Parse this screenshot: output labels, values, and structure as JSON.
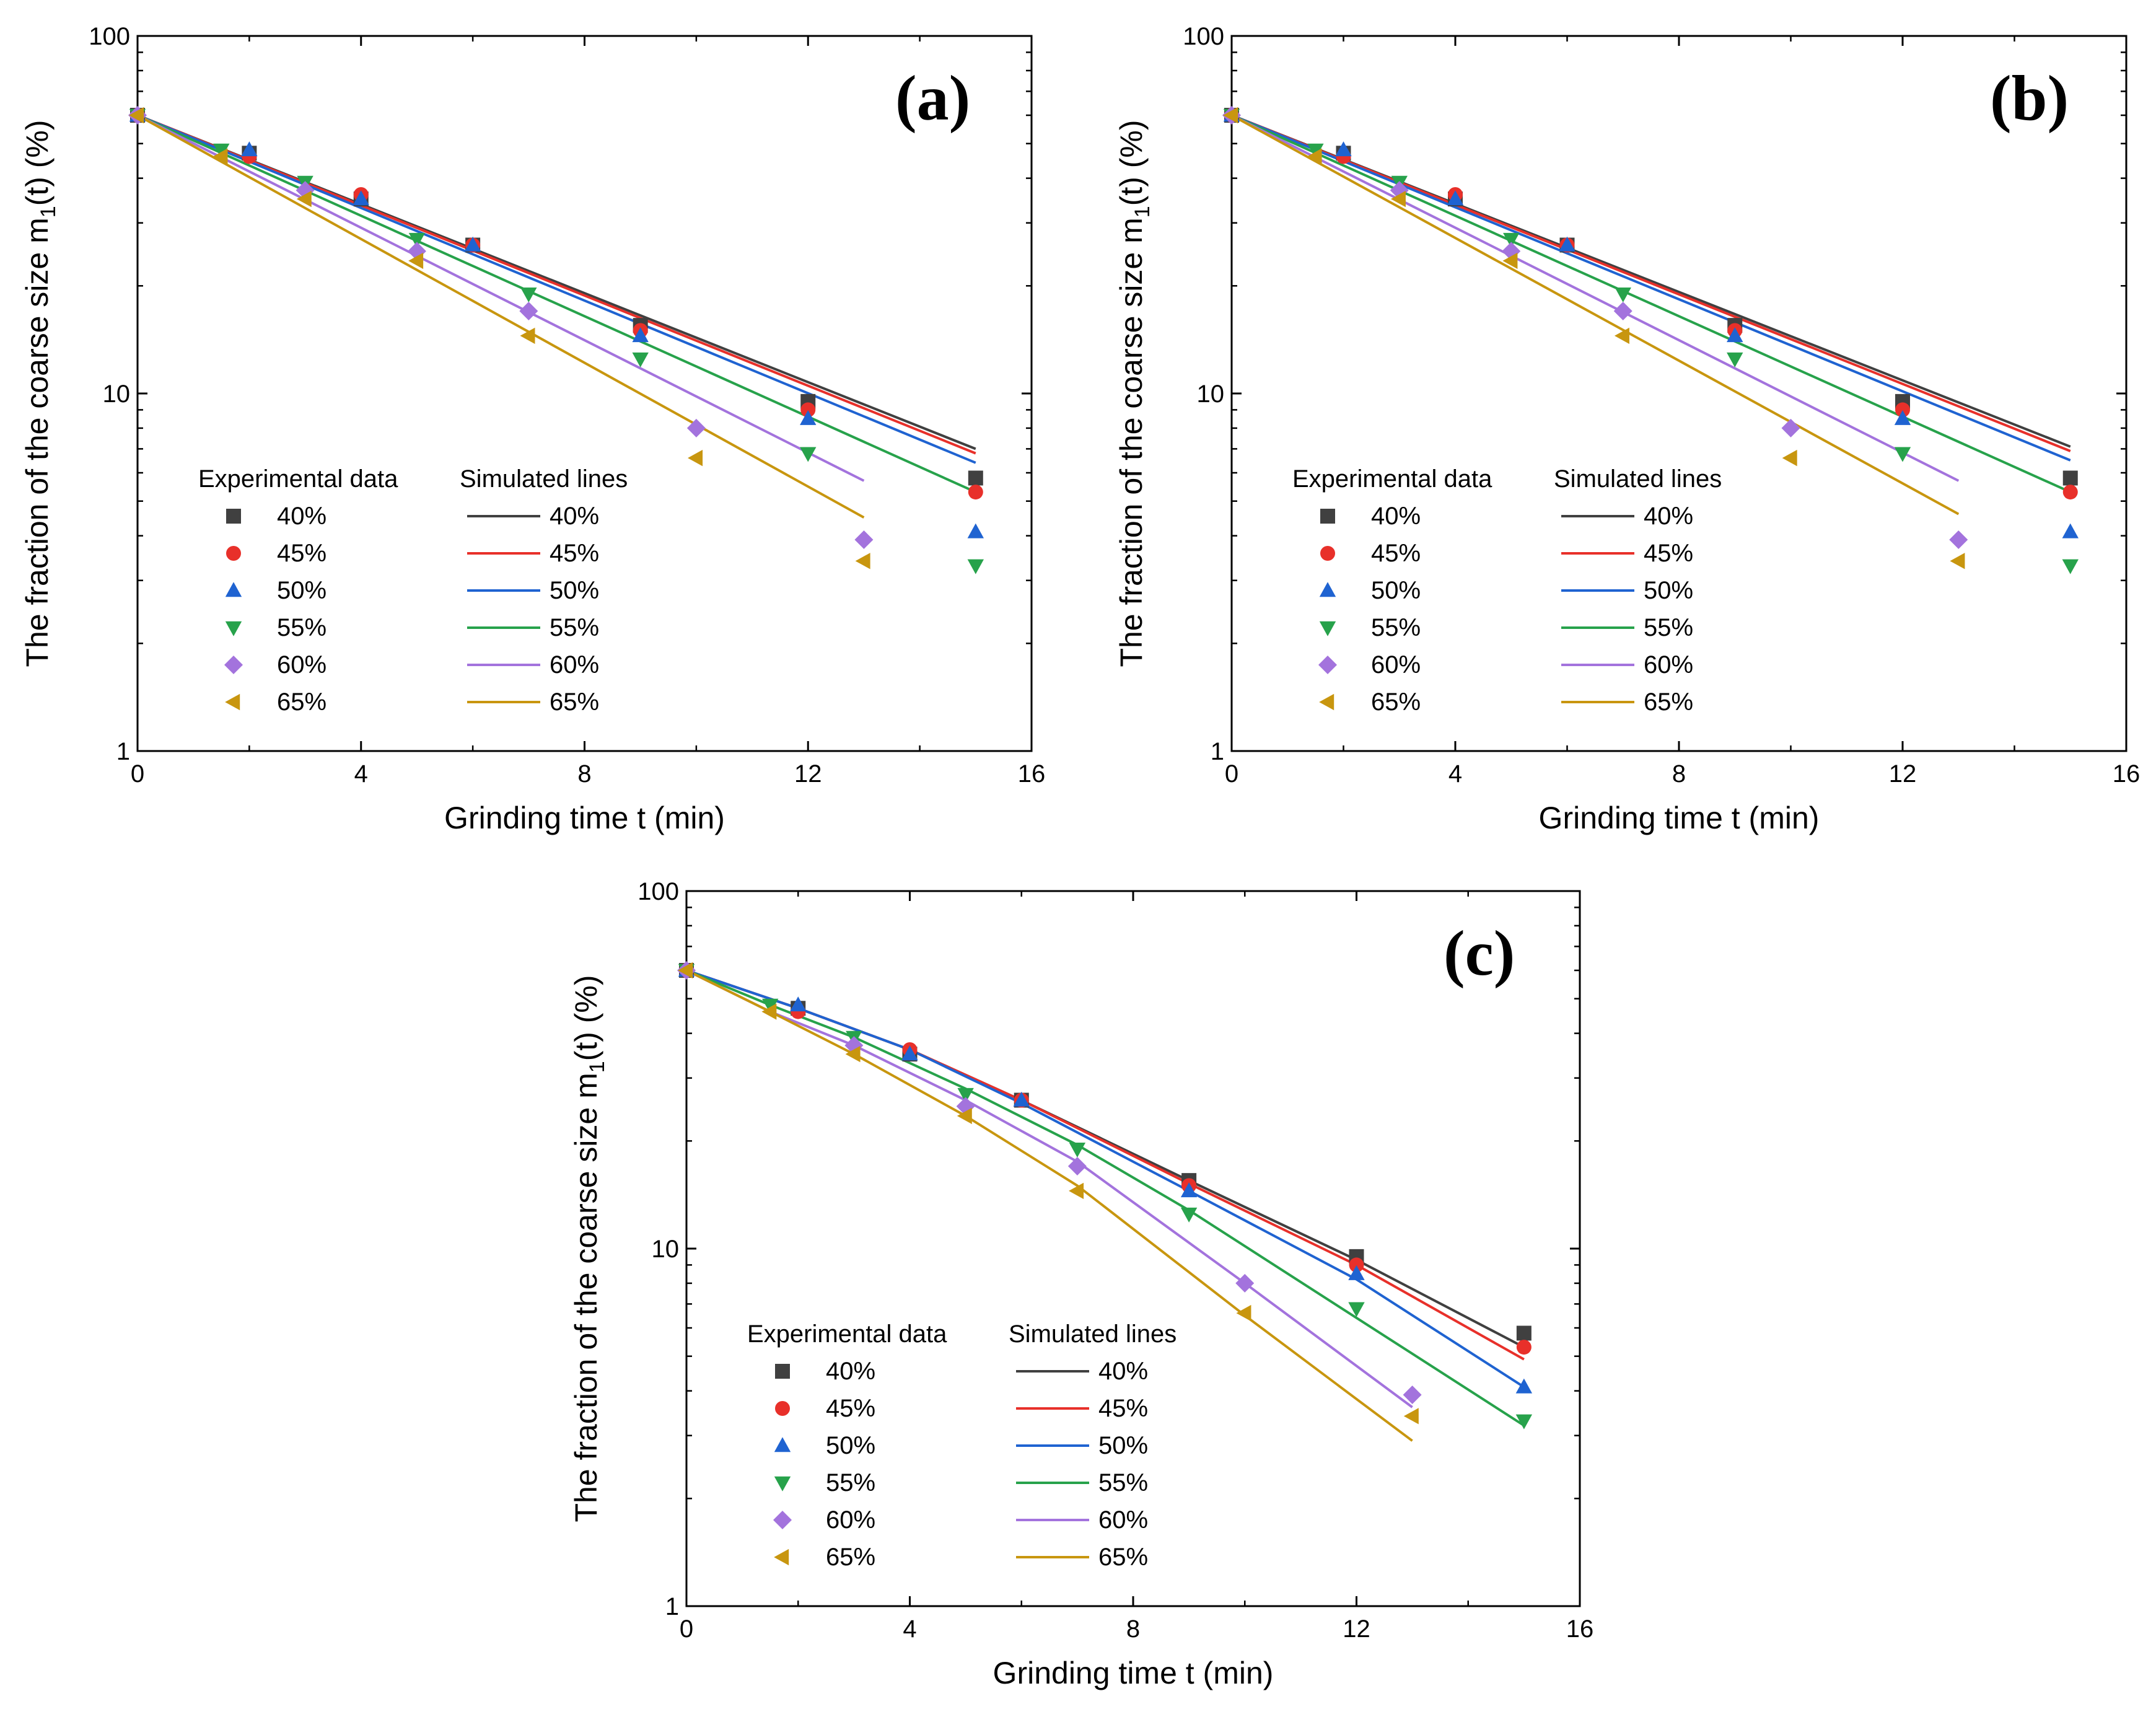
{
  "colors": {
    "40%": "#404040",
    "45%": "#e8302a",
    "50%": "#1f63d1",
    "55%": "#27a24b",
    "60%": "#a373dd",
    "65%": "#c8960f"
  },
  "markers": {
    "40%": "square",
    "45%": "circle",
    "50%": "triangle-up",
    "55%": "triangle-down",
    "60%": "diamond",
    "65%": "triangle-left"
  },
  "chart_data": [
    {
      "type": "scatter",
      "panel_label": "(a)",
      "xlabel": "Grinding time t (min)",
      "ylabel_main": "The fraction of the coarse size m",
      "ylabel_sub": "1",
      "ylabel_tail": "(t) (%)",
      "x_scale": "linear",
      "y_scale": "log",
      "xlim": [
        0,
        16
      ],
      "ylim": [
        1,
        100
      ],
      "x_ticks": [
        0,
        4,
        8,
        12,
        16
      ],
      "x_tick_labels": [
        "0",
        "4",
        "8",
        "12",
        "16"
      ],
      "y_ticks": [
        1,
        10,
        100
      ],
      "y_tick_labels": [
        "1",
        "10",
        "100"
      ],
      "legend": {
        "placement": "lower-left",
        "title_exp": "Experimental data",
        "title_sim": "Simulated lines"
      },
      "series": [
        {
          "name": "40%",
          "x": [
            0,
            2,
            4,
            6,
            9,
            12,
            15
          ],
          "y": [
            60,
            47,
            35,
            26,
            15.5,
            9.5,
            5.8
          ],
          "line_x": [
            0,
            15
          ],
          "line_y": [
            60,
            7.0
          ]
        },
        {
          "name": "45%",
          "x": [
            0,
            2,
            4,
            6,
            9,
            12,
            15
          ],
          "y": [
            60,
            46,
            36,
            26,
            15,
            9,
            5.3
          ],
          "line_x": [
            0,
            15
          ],
          "line_y": [
            60,
            6.8
          ]
        },
        {
          "name": "50%",
          "x": [
            0,
            2,
            4,
            6,
            9,
            12,
            15
          ],
          "y": [
            60,
            48,
            35,
            26,
            14.5,
            8.5,
            4.1
          ],
          "line_x": [
            0,
            15
          ],
          "line_y": [
            60,
            6.4
          ]
        },
        {
          "name": "55%",
          "x": [
            0,
            1.5,
            3,
            5,
            7,
            9,
            12,
            15
          ],
          "y": [
            60,
            48,
            39,
            27,
            19,
            12.5,
            6.8,
            3.3
          ],
          "line_x": [
            0,
            15
          ],
          "line_y": [
            60,
            5.3
          ]
        },
        {
          "name": "60%",
          "x": [
            0,
            3,
            5,
            7,
            10,
            13
          ],
          "y": [
            60,
            37,
            25,
            17,
            8,
            3.9
          ],
          "line_x": [
            0,
            13
          ],
          "line_y": [
            60,
            5.7
          ]
        },
        {
          "name": "65%",
          "x": [
            0,
            1.5,
            3,
            5,
            7,
            10,
            13
          ],
          "y": [
            60,
            46,
            35,
            23.5,
            14.5,
            6.6,
            3.4
          ],
          "line_x": [
            0,
            13
          ],
          "line_y": [
            60,
            4.5
          ]
        }
      ]
    },
    {
      "type": "scatter",
      "panel_label": "(b)",
      "xlabel": "Grinding time t (min)",
      "ylabel_main": "The fraction of the coarse size m",
      "ylabel_sub": "1",
      "ylabel_tail": "(t) (%)",
      "x_scale": "linear",
      "y_scale": "log",
      "xlim": [
        0,
        16
      ],
      "ylim": [
        1,
        100
      ],
      "x_ticks": [
        0,
        4,
        8,
        12,
        16
      ],
      "x_tick_labels": [
        "0",
        "4",
        "8",
        "12",
        "16"
      ],
      "y_ticks": [
        1,
        10,
        100
      ],
      "y_tick_labels": [
        "1",
        "10",
        "100"
      ],
      "legend": {
        "placement": "lower-left",
        "title_exp": "Experimental data",
        "title_sim": "Simulated lines"
      },
      "series": [
        {
          "name": "40%",
          "x": [
            0,
            2,
            4,
            6,
            9,
            12,
            15
          ],
          "y": [
            60,
            47,
            35,
            26,
            15.5,
            9.5,
            5.8
          ],
          "line_x": [
            0,
            15
          ],
          "line_y": [
            60,
            7.1
          ]
        },
        {
          "name": "45%",
          "x": [
            0,
            2,
            4,
            6,
            9,
            12,
            15
          ],
          "y": [
            60,
            46,
            36,
            26,
            15,
            9,
            5.3
          ],
          "line_x": [
            0,
            15
          ],
          "line_y": [
            60,
            6.9
          ]
        },
        {
          "name": "50%",
          "x": [
            0,
            2,
            4,
            6,
            9,
            12,
            15
          ],
          "y": [
            60,
            48,
            35,
            26,
            14.5,
            8.5,
            4.1
          ],
          "line_x": [
            0,
            15
          ],
          "line_y": [
            60,
            6.5
          ]
        },
        {
          "name": "55%",
          "x": [
            0,
            1.5,
            3,
            5,
            7,
            9,
            12,
            15
          ],
          "y": [
            60,
            48,
            39,
            27,
            19,
            12.5,
            6.8,
            3.3
          ],
          "line_x": [
            0,
            15
          ],
          "line_y": [
            60,
            5.3
          ]
        },
        {
          "name": "60%",
          "x": [
            0,
            3,
            5,
            7,
            10,
            13
          ],
          "y": [
            60,
            37,
            25,
            17,
            8,
            3.9
          ],
          "line_x": [
            0,
            13
          ],
          "line_y": [
            60,
            5.7
          ]
        },
        {
          "name": "65%",
          "x": [
            0,
            1.5,
            3,
            5,
            7,
            10,
            13
          ],
          "y": [
            60,
            46,
            35,
            23.5,
            14.5,
            6.6,
            3.4
          ],
          "line_x": [
            0,
            13
          ],
          "line_y": [
            60,
            4.6
          ]
        }
      ]
    },
    {
      "type": "scatter",
      "panel_label": "(c)",
      "xlabel": "Grinding time t (min)",
      "ylabel_main": "The fraction of the coarse size m",
      "ylabel_sub": "1",
      "ylabel_tail": "(t) (%)",
      "x_scale": "linear",
      "y_scale": "log",
      "xlim": [
        0,
        16
      ],
      "ylim": [
        1,
        100
      ],
      "x_ticks": [
        0,
        4,
        8,
        12,
        16
      ],
      "x_tick_labels": [
        "0",
        "4",
        "8",
        "12",
        "16"
      ],
      "y_ticks": [
        1,
        10,
        100
      ],
      "y_tick_labels": [
        "1",
        "10",
        "100"
      ],
      "legend": {
        "placement": "lower-left",
        "title_exp": "Experimental data",
        "title_sim": "Simulated lines"
      },
      "series": [
        {
          "name": "40%",
          "x": [
            0,
            2,
            4,
            6,
            9,
            12,
            15
          ],
          "y": [
            60,
            47,
            35,
            26,
            15.5,
            9.5,
            5.8
          ],
          "line_x": [
            0,
            2,
            4,
            6,
            9,
            12,
            15
          ],
          "line_y": [
            60,
            47,
            36,
            26,
            15.5,
            9.3,
            5.3
          ]
        },
        {
          "name": "45%",
          "x": [
            0,
            2,
            4,
            6,
            9,
            12,
            15
          ],
          "y": [
            60,
            46,
            36,
            26,
            15,
            9,
            5.3
          ],
          "line_x": [
            0,
            2,
            4,
            6,
            9,
            12,
            15
          ],
          "line_y": [
            60,
            47,
            36,
            26,
            15.2,
            9.0,
            4.9
          ]
        },
        {
          "name": "50%",
          "x": [
            0,
            2,
            4,
            6,
            9,
            12,
            15
          ],
          "y": [
            60,
            48,
            35,
            26,
            14.5,
            8.5,
            4.1
          ],
          "line_x": [
            0,
            2,
            4,
            6,
            9,
            12,
            15
          ],
          "line_y": [
            60,
            47,
            36,
            25.5,
            14.5,
            8.2,
            4.1
          ]
        },
        {
          "name": "55%",
          "x": [
            0,
            1.5,
            3,
            5,
            7,
            9,
            12,
            15
          ],
          "y": [
            60,
            48,
            39,
            27,
            19,
            12.5,
            6.8,
            3.3
          ],
          "line_x": [
            0,
            1.5,
            3,
            5,
            7,
            9,
            12,
            15
          ],
          "line_y": [
            60,
            48,
            39,
            28,
            19.5,
            12.8,
            6.4,
            3.2
          ]
        },
        {
          "name": "60%",
          "x": [
            0,
            3,
            5,
            7,
            10,
            13
          ],
          "y": [
            60,
            37,
            25,
            17,
            8,
            3.9
          ],
          "line_x": [
            0,
            1.5,
            3,
            5,
            7,
            10,
            13
          ],
          "line_y": [
            60,
            46,
            37,
            26,
            17.5,
            8.0,
            3.6
          ]
        },
        {
          "name": "65%",
          "x": [
            0,
            1.5,
            3,
            5,
            7,
            10,
            13
          ],
          "y": [
            60,
            46,
            35,
            23.5,
            14.5,
            6.6,
            3.4
          ],
          "line_x": [
            0,
            1.5,
            3,
            5,
            7,
            10,
            13
          ],
          "line_y": [
            60,
            46,
            35,
            23.5,
            15,
            6.5,
            2.9
          ]
        }
      ]
    }
  ]
}
